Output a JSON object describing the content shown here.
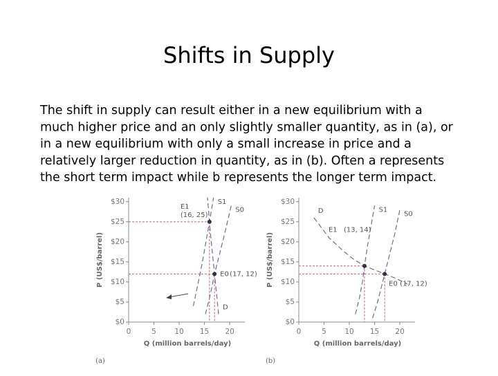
{
  "title": "Shifts in Supply",
  "body": [
    "The shift in supply can result either in a new equilibrium with a",
    "much higher price and an only slightly smaller quantity, as in (a), or",
    "in a new equilibrium with only a small increase in price and a",
    "relatively larger reduction in quantity, as in (b). Often a represents",
    "the short term impact while b represents the longer term impact."
  ],
  "chart_data": [
    {
      "type": "line",
      "panel_label": "(a)",
      "x_label": "Q (million barrels/day)",
      "y_label": "P (US$/barrel)",
      "xlim": [
        0,
        23
      ],
      "ylim": [
        0,
        31
      ],
      "xticks": [
        0,
        5,
        10,
        15,
        20
      ],
      "yticks": [
        {
          "value": 0,
          "label": "$0"
        },
        {
          "value": 5,
          "label": "$5"
        },
        {
          "value": 10,
          "label": "$10"
        },
        {
          "value": 15,
          "label": "$15"
        },
        {
          "value": 20,
          "label": "$20"
        },
        {
          "value": 25,
          "label": "$25"
        },
        {
          "value": 30,
          "label": "$30"
        }
      ],
      "series": [
        {
          "name": "S1",
          "color": "#6b6f8a",
          "x": [
            12.8,
            13.8,
            14.6,
            15.3,
            16,
            16.8
          ],
          "values": [
            4,
            10,
            15,
            20,
            25,
            31
          ]
        },
        {
          "name": "S0",
          "color": "#6b6f8a",
          "x": [
            15.2,
            16.2,
            17,
            18,
            19,
            20.3
          ],
          "values": [
            2,
            7,
            12,
            17,
            22,
            29
          ]
        },
        {
          "name": "D",
          "color": "#6b6f8a",
          "x": [
            17.8,
            17.4,
            17,
            16.6,
            16.2,
            16,
            15.6
          ],
          "values": [
            2,
            7,
            12,
            17,
            22,
            25,
            31
          ]
        }
      ],
      "points": {
        "names": [
          "E1",
          "E0"
        ],
        "x": [
          16,
          17
        ],
        "values": [
          25,
          12
        ],
        "value_labels": [
          "(16, 25)",
          "(17, 12)"
        ],
        "color": "#333344"
      }
    },
    {
      "type": "line",
      "panel_label": "(b)",
      "x_label": "Q (million barrels/day)",
      "y_label": "P (US$/barrel)",
      "xlim": [
        0,
        23
      ],
      "ylim": [
        0,
        31
      ],
      "xticks": [
        0,
        5,
        10,
        15,
        20
      ],
      "yticks": [
        {
          "value": 0,
          "label": "$0"
        },
        {
          "value": 5,
          "label": "$5"
        },
        {
          "value": 10,
          "label": "$10"
        },
        {
          "value": 15,
          "label": "$15"
        },
        {
          "value": 20,
          "label": "$20"
        },
        {
          "value": 25,
          "label": "$25"
        },
        {
          "value": 30,
          "label": "$30"
        }
      ],
      "series": [
        {
          "name": "S1",
          "color": "#6b6f8a",
          "x": [
            11.2,
            12,
            12.6,
            13,
            13.6,
            14.3,
            15
          ],
          "values": [
            2,
            6,
            10,
            14,
            19,
            24,
            29
          ]
        },
        {
          "name": "S0",
          "color": "#6b6f8a",
          "x": [
            14.6,
            15.6,
            17,
            18,
            19,
            20
          ],
          "values": [
            1,
            5,
            12,
            17,
            22,
            28
          ]
        },
        {
          "name": "D",
          "color": "#6b6f8a",
          "x": [
            3,
            6,
            9,
            11,
            13,
            15,
            17,
            19,
            21.5
          ],
          "values": [
            26,
            21,
            17.5,
            15.5,
            14,
            13,
            12,
            11,
            9.5
          ]
        }
      ],
      "points": {
        "names": [
          "E1",
          "E0"
        ],
        "x": [
          13,
          17
        ],
        "values": [
          14,
          12
        ],
        "value_labels": [
          "(13, 14)",
          "(17, 12)"
        ],
        "color": "#333344"
      }
    }
  ]
}
